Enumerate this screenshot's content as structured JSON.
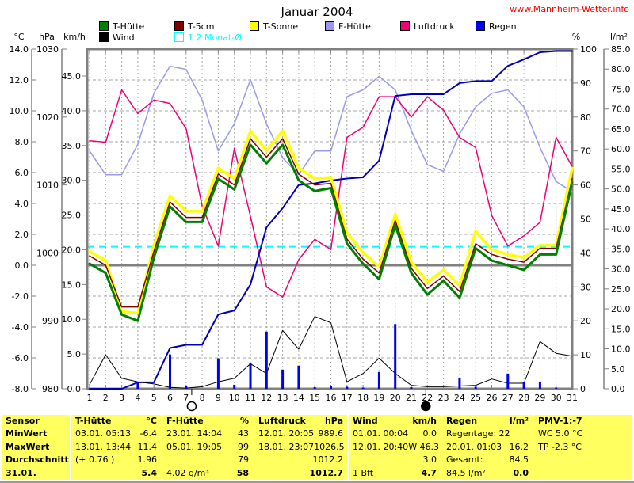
{
  "header": {
    "title": "Januar 2004",
    "site": "www.Mannheim-Wetter.info"
  },
  "legend": {
    "rows": [
      [
        {
          "label": "T-Hütte",
          "color": "#008000"
        },
        {
          "label": "T-5cm",
          "color": "#800000"
        },
        {
          "label": "T-Sonne",
          "color": "#ffff00"
        },
        {
          "label": "F-Hütte",
          "color": "#9999ee"
        },
        {
          "label": "Luftdruck",
          "color": "#ee0077"
        },
        {
          "label": "Regen",
          "color": "#0000ee"
        }
      ],
      [
        {
          "label": "Wind",
          "color": "#000000"
        },
        {
          "label": "1.2 Monat-Ø",
          "color": "#00ffff",
          "outline": true,
          "text_color": "#00ffff"
        }
      ]
    ]
  },
  "axes": {
    "celsius": {
      "header": "°C",
      "ticks": [
        "14.0",
        "12.0",
        "10.0",
        "8.0",
        "6.0",
        "4.0",
        "2.0",
        "0.0",
        "-2.0",
        "-4.0",
        "-6.0",
        "-8.0"
      ]
    },
    "hpa": {
      "header": "hPa",
      "ticks": [
        "1030",
        "1020",
        "1010",
        "1000",
        "990",
        "980"
      ]
    },
    "kmh": {
      "header": "km/h",
      "ticks": [
        "45.0",
        "40.0",
        "35.0",
        "30.0",
        "25.0",
        "20.0",
        "15.0",
        "10.0",
        "5.0",
        "0.0"
      ]
    },
    "percent": {
      "header": "%",
      "ticks": [
        "100",
        "90",
        "80",
        "70",
        "60",
        "50",
        "40",
        "30",
        "20",
        "10",
        "0"
      ]
    },
    "lm2": {
      "header": "l/m²",
      "ticks": [
        "85.0",
        "80.0",
        "75.0",
        "70.0",
        "65.0",
        "60.0",
        "55.0",
        "50.0",
        "45.0",
        "40.0",
        "35.0",
        "30.0",
        "25.0",
        "20.0",
        "15.0",
        "10.0",
        "5.0",
        "0.0"
      ]
    }
  },
  "chart_data": {
    "type": "line",
    "x_days": [
      1,
      2,
      3,
      4,
      5,
      6,
      7,
      8,
      9,
      10,
      11,
      12,
      13,
      14,
      15,
      16,
      17,
      18,
      19,
      20,
      21,
      22,
      23,
      24,
      25,
      26,
      27,
      28,
      29,
      30,
      31
    ],
    "axis_ranges": {
      "celsius": [
        -8,
        14
      ],
      "hpa": [
        980,
        1030
      ],
      "kmh": [
        0,
        45
      ],
      "percent": [
        0,
        100
      ],
      "lm2": [
        0,
        85
      ]
    },
    "grid": true,
    "series": [
      {
        "name": "F-Hütte",
        "axis": "percent",
        "color": "#9999ee",
        "width": 1.5,
        "values": [
          70,
          63,
          63,
          72,
          87,
          95,
          94,
          85,
          70,
          78,
          91,
          78,
          68,
          63,
          70,
          70,
          86,
          88,
          92,
          88,
          76,
          66,
          64,
          75,
          83,
          87,
          88,
          83,
          71,
          61,
          58
        ]
      },
      {
        "name": "Luftdruck",
        "axis": "hpa",
        "color": "#ee0077",
        "width": 1.5,
        "values": [
          1016.5,
          1016.3,
          1024,
          1020.5,
          1022.5,
          1022,
          1018.3,
          1006.9,
          1001,
          1015.4,
          1005.4,
          995,
          993.5,
          999,
          1002,
          1000.5,
          1017,
          1018.5,
          1023,
          1023,
          1020,
          1023,
          1021,
          1017,
          1015.5,
          1005.5,
          1001,
          1002.5,
          1004.5,
          1017,
          1012.7
        ]
      },
      {
        "name": "Regen-Summe",
        "axis": "lm2",
        "color": "#0000bb",
        "width": 2,
        "values": [
          0,
          0,
          0,
          1.6,
          1.6,
          10.2,
          11.0,
          11.0,
          18.6,
          19.6,
          26.1,
          40.4,
          45.2,
          51.0,
          51.4,
          52.1,
          52.6,
          52.9,
          57.1,
          73.3,
          73.7,
          73.7,
          73.7,
          76.5,
          77.0,
          77.0,
          80.8,
          82.4,
          84.2,
          84.5,
          84.5
        ]
      },
      {
        "name": "Wind",
        "axis": "kmh",
        "color": "#000000",
        "width": 1,
        "values": [
          0.6,
          4.9,
          1.5,
          1.0,
          0.7,
          0.2,
          0.1,
          0.3,
          1.0,
          1.5,
          3.6,
          2.2,
          8.4,
          5.7,
          10.4,
          9.5,
          1.0,
          2.2,
          4.4,
          2.2,
          0.5,
          0.3,
          0.3,
          0.4,
          0.5,
          1.4,
          0.8,
          0.8,
          6.8,
          5.1,
          4.7
        ]
      },
      {
        "name": "T-Sonne",
        "axis": "celsius",
        "color": "#ffff00",
        "width": 3.5,
        "values": [
          0.9,
          0.3,
          -3.0,
          -3.1,
          1.3,
          4.5,
          3.5,
          3.5,
          6.3,
          5.6,
          8.7,
          7.4,
          8.7,
          6.3,
          5.6,
          5.7,
          2.1,
          0.8,
          -0.1,
          3.3,
          0.2,
          -1.1,
          -0.3,
          -1.3,
          2.2,
          1.0,
          0.7,
          0.5,
          1.3,
          1.3,
          6.3
        ]
      },
      {
        "name": "T-5cm",
        "axis": "celsius",
        "color": "#800000",
        "width": 1.5,
        "values": [
          0.6,
          0.0,
          -2.7,
          -2.7,
          0.9,
          4.1,
          3.1,
          3.1,
          5.9,
          5.2,
          8.2,
          7.0,
          8.2,
          5.9,
          5.2,
          5.3,
          1.7,
          0.4,
          -0.5,
          2.9,
          -0.2,
          -1.5,
          -0.7,
          -1.7,
          1.4,
          0.7,
          0.4,
          0.2,
          1.1,
          1.1,
          5.6
        ]
      },
      {
        "name": "T-Hütte",
        "axis": "celsius",
        "color": "#008000",
        "width": 3,
        "values": [
          0.1,
          -0.5,
          -3.2,
          -3.6,
          0.5,
          3.8,
          2.8,
          2.8,
          5.6,
          4.9,
          7.8,
          6.6,
          7.8,
          5.5,
          4.8,
          5.0,
          1.4,
          0.1,
          -0.9,
          2.6,
          -0.5,
          -1.9,
          -1.0,
          -2.1,
          1.1,
          0.3,
          0.0,
          -0.3,
          0.7,
          0.7,
          5.4
        ]
      }
    ],
    "rain_bars": {
      "name": "Regen",
      "axis": "lm2",
      "color": "#0000ee",
      "values": [
        0,
        0,
        0,
        1.6,
        0,
        8.6,
        0.8,
        0,
        7.6,
        1.0,
        6.5,
        14.3,
        4.8,
        5.8,
        0.4,
        0.7,
        0.5,
        0.3,
        4.2,
        16.2,
        0.4,
        0,
        0,
        2.8,
        0.5,
        0,
        3.8,
        1.6,
        1.8,
        0.3,
        0
      ]
    },
    "reference_lines": [
      {
        "label": "1.2 Monat-Ø",
        "axis": "celsius",
        "value": 1.2,
        "color": "#00ffff",
        "style": "dashed"
      },
      {
        "label": "0 °C",
        "axis": "celsius",
        "value": 0,
        "color": "#808080",
        "style": "solid"
      }
    ],
    "moon_markers": [
      {
        "day": 7.35,
        "phase": "full-moon"
      },
      {
        "day": 21.9,
        "phase": "new-moon"
      }
    ]
  },
  "table": {
    "row_labels": [
      "Sensor",
      "MinWert",
      "MaxWert",
      "Durchschnitt",
      "31.01."
    ],
    "columns": [
      {
        "header": "T-Hütte",
        "unit": "°C",
        "rows": [
          [
            "03.01.  05:13",
            "-6.4"
          ],
          [
            "13.01.  13:44",
            "11.4"
          ],
          [
            "(+ 0.76 )",
            "1.96"
          ],
          [
            "",
            "5.4"
          ]
        ]
      },
      {
        "header": "F-Hütte",
        "unit": "%",
        "rows": [
          [
            "23.01.  14:04",
            "43"
          ],
          [
            "05.01.  19:05",
            "99"
          ],
          [
            "",
            "79"
          ],
          [
            "4.02 g/m³",
            "58"
          ]
        ]
      },
      {
        "header": "Luftdruck",
        "unit": "hPa",
        "rows": [
          [
            "12.01.  20:05",
            "989.6"
          ],
          [
            "18.01.  23:07",
            "1026.5"
          ],
          [
            "",
            "1012.2"
          ],
          [
            "",
            "1012.7"
          ]
        ]
      },
      {
        "header": "Wind",
        "unit": "km/h",
        "rows": [
          [
            "01.01.  00:04",
            "0.0"
          ],
          [
            "12.01.  20:40",
            "W 46.3"
          ],
          [
            "",
            "3.0"
          ],
          [
            "1 Bft",
            "4.7"
          ]
        ]
      },
      {
        "header": "Regen",
        "unit": "l/m²",
        "rows": [
          [
            "Regentage: 22",
            ""
          ],
          [
            "20.01.  01:03",
            "16.2"
          ],
          [
            "Gesamt:",
            "84.5"
          ],
          [
            "84.5 l/m²",
            "0.0"
          ]
        ]
      }
    ],
    "pmv": {
      "header": "PMV-1:-7",
      "lines": [
        "WC 5.0 °C",
        "TP -2.3 °C"
      ]
    }
  }
}
